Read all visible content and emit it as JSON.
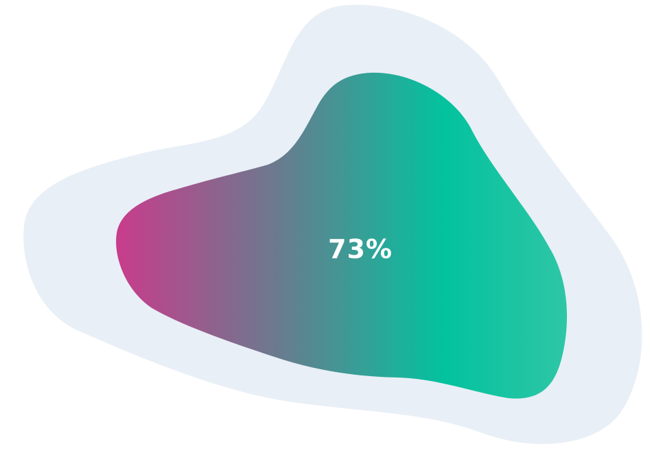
{
  "indicator": {
    "value_label": "73%",
    "value": 0.73
  },
  "colors": {
    "background": "#ffffff",
    "outer_blob": "#E9EFF6",
    "gradient_start": "#C83C8C",
    "gradient_mid": "#6B7A8E",
    "gradient_accent": "#03C29E",
    "gradient_end": "#2FC6A6",
    "label_text": "#ffffff"
  }
}
